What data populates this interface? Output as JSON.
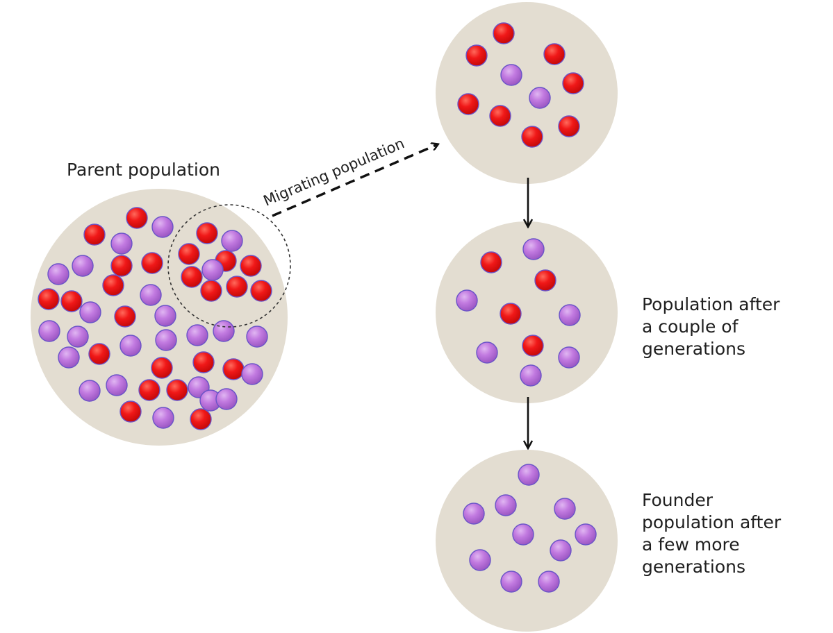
{
  "labels": {
    "parent": "Parent population",
    "migrating": "Migrating population",
    "couple": [
      "Population after",
      "a couple of",
      "generations"
    ],
    "founder": [
      "Founder",
      "population after",
      "a few more",
      "generations"
    ]
  },
  "colors": {
    "background": "#ffffff",
    "population_fill": "#e3ddd1",
    "red_allele": "#ee1111",
    "purple_allele": "#b76ad6",
    "dot_outline": "#6a54c8",
    "arrow": "#111111"
  },
  "legend_symbols": {
    "red": "red-allele-dot",
    "purple": "purple-allele-dot"
  }
}
